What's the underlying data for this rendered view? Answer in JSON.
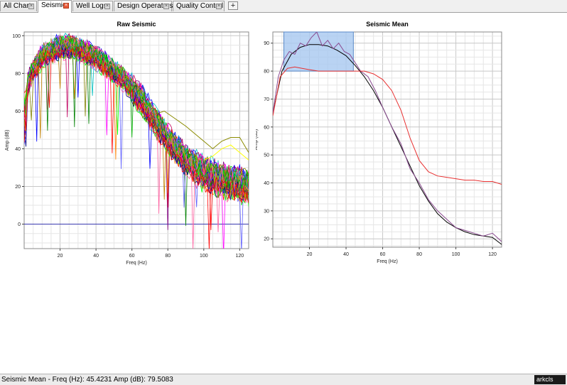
{
  "tabs": [
    {
      "label": "All Charts",
      "active": false
    },
    {
      "label": "Seismic",
      "active": true
    },
    {
      "label": "Well Logs",
      "active": false
    },
    {
      "label": "Design Operators",
      "active": false
    },
    {
      "label": "Quality Control",
      "active": false
    }
  ],
  "tab_add_label": "+",
  "chart_data": [
    {
      "type": "line",
      "title": "Raw Seismic",
      "xlabel": "Freq (Hz)",
      "ylabel": "Amp (dB)",
      "xlim": [
        0,
        125
      ],
      "ylim": [
        -13,
        102
      ],
      "xticks": [
        20,
        40,
        60,
        80,
        100,
        120
      ],
      "yticks": [
        0,
        20,
        40,
        60,
        80,
        100
      ],
      "grid": true,
      "series_count": 50,
      "envelope": {
        "x": [
          0,
          5,
          10,
          15,
          20,
          25,
          30,
          35,
          40,
          45,
          50,
          55,
          60,
          65,
          70,
          75,
          80,
          85,
          90,
          95,
          100,
          105,
          110,
          115,
          120,
          125
        ],
        "y": [
          68,
          82,
          89,
          92,
          94,
          94,
          93,
          91,
          88,
          85,
          81,
          77,
          72,
          66,
          59,
          52,
          45,
          39,
          34,
          30,
          27,
          25,
          23,
          22,
          21,
          20
        ]
      },
      "outlier_series": [
        {
          "color": "#8b8b00",
          "x": [
            72,
            78,
            84,
            90,
            95,
            100,
            105,
            110,
            115,
            120,
            125
          ],
          "y": [
            58,
            60,
            56,
            52,
            48,
            44,
            40,
            44,
            46,
            46,
            38
          ]
        },
        {
          "color": "#ffff00",
          "x": [
            100,
            105,
            110,
            115,
            120,
            125
          ],
          "y": [
            34,
            36,
            40,
            42,
            38,
            34
          ]
        }
      ],
      "zero_line": 0
    },
    {
      "type": "line",
      "title": "Seismic Mean",
      "xlabel": "Freq (Hz)",
      "ylabel": "Amp (dB)",
      "xlim": [
        0,
        125
      ],
      "ylim": [
        17,
        94
      ],
      "xticks": [
        20,
        40,
        60,
        80,
        100,
        120
      ],
      "yticks": [
        20,
        30,
        40,
        50,
        60,
        70,
        80,
        90
      ],
      "grid": true,
      "selection": {
        "x": [
          6,
          44
        ],
        "y": [
          80,
          94
        ]
      },
      "series": [
        {
          "color": "#000000",
          "x": [
            0,
            5,
            10,
            15,
            20,
            25,
            30,
            35,
            40,
            45,
            50,
            55,
            60,
            65,
            70,
            75,
            80,
            85,
            90,
            95,
            100,
            105,
            110,
            115,
            120,
            125
          ],
          "y": [
            65,
            80,
            86,
            88.5,
            89.5,
            89.5,
            89,
            87.5,
            85.5,
            82,
            78,
            73,
            67,
            60,
            53,
            46,
            39,
            33.5,
            29,
            26,
            24,
            22.5,
            21.5,
            21,
            20.5,
            18
          ]
        },
        {
          "color": "#8a4a90",
          "x": [
            0,
            3,
            6,
            9,
            12,
            15,
            18,
            21,
            24,
            27,
            30,
            33,
            36,
            39,
            42,
            45,
            48,
            52,
            56,
            60,
            65,
            70,
            75,
            80,
            85,
            90,
            95,
            100,
            105,
            110,
            115,
            120,
            125
          ],
          "y": [
            65,
            78,
            84,
            87,
            86,
            90,
            89,
            92,
            94,
            89,
            91,
            88,
            90,
            87,
            86,
            83,
            80,
            78,
            73,
            67,
            60,
            54,
            45,
            40,
            34,
            30,
            27,
            24,
            23,
            22,
            21,
            22,
            19
          ]
        },
        {
          "color": "#e83030",
          "x": [
            0,
            4,
            8,
            12,
            16,
            20,
            25,
            30,
            35,
            40,
            45,
            50,
            55,
            60,
            65,
            70,
            75,
            80,
            85,
            90,
            95,
            100,
            105,
            110,
            115,
            120,
            125
          ],
          "y": [
            64,
            78,
            81,
            81.5,
            81,
            80.5,
            80,
            80,
            80,
            80,
            80,
            80,
            79,
            77,
            73,
            66,
            56,
            48,
            44,
            42.5,
            42,
            41.5,
            41,
            41,
            40.5,
            40.5,
            39.5
          ]
        }
      ]
    }
  ],
  "status": {
    "text": "Seismic Mean  -  Freq (Hz): 45.4231  Amp (dB): 79.5083"
  },
  "logo": {
    "text": "arkcls"
  }
}
